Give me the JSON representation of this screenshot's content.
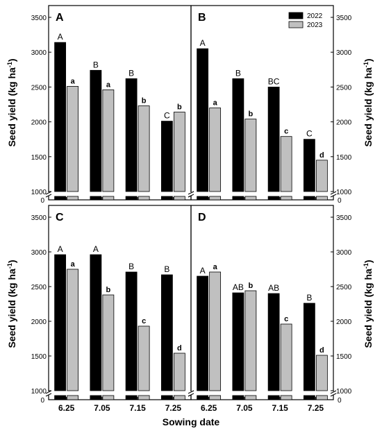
{
  "figure": {
    "xlabel": "Sowing date",
    "ylabel_main": "Seed yield (kg ha",
    "ylabel_sup": "-1",
    "ylabel_close": ")",
    "legend": [
      "2022",
      "2023"
    ],
    "colors": {
      "s2022": "#000000",
      "s2023": "#c0c0c0",
      "axis": "#000000",
      "break_bg": "#ffffff"
    }
  },
  "chart_data": [
    {
      "type": "bar",
      "panel": "A",
      "categories": [
        "6.25",
        "7.05",
        "7.15",
        "7.25"
      ],
      "ylim": [
        1000,
        3700
      ],
      "yticks": [
        "1000",
        "1500",
        "2000",
        "2500",
        "3000",
        "3500"
      ],
      "broken_axis_zero": "0",
      "series": [
        {
          "name": "2022",
          "values": [
            3140,
            2740,
            2620,
            2010
          ],
          "labels": [
            "A",
            "B",
            "B",
            "C"
          ]
        },
        {
          "name": "2023",
          "values": [
            2510,
            2460,
            2230,
            2140
          ],
          "labels": [
            "a",
            "a",
            "b",
            "b"
          ]
        }
      ],
      "legend_position": "none"
    },
    {
      "type": "bar",
      "panel": "B",
      "categories": [
        "6.25",
        "7.05",
        "7.15",
        "7.25"
      ],
      "ylim": [
        1000,
        3700
      ],
      "yticks": [
        "1000",
        "1500",
        "2000",
        "2500",
        "3000",
        "3500"
      ],
      "broken_axis_zero": "0",
      "series": [
        {
          "name": "2022",
          "values": [
            3050,
            2620,
            2500,
            1750
          ],
          "labels": [
            "A",
            "B",
            "BC",
            "C"
          ]
        },
        {
          "name": "2023",
          "values": [
            2200,
            2040,
            1790,
            1450
          ],
          "labels": [
            "a",
            "b",
            "c",
            "d"
          ]
        }
      ],
      "legend_position": "top-right"
    },
    {
      "type": "bar",
      "panel": "C",
      "categories": [
        "6.25",
        "7.05",
        "7.15",
        "7.25"
      ],
      "ylim": [
        1000,
        3700
      ],
      "yticks": [
        "1000",
        "1500",
        "2000",
        "2500",
        "3000",
        "3500"
      ],
      "broken_axis_zero": "0",
      "series": [
        {
          "name": "2022",
          "values": [
            2960,
            2960,
            2710,
            2670
          ],
          "labels": [
            "A",
            "A",
            "B",
            "B"
          ]
        },
        {
          "name": "2023",
          "values": [
            2750,
            2380,
            1930,
            1540
          ],
          "labels": [
            "a",
            "b",
            "c",
            "d"
          ]
        }
      ],
      "legend_position": "none"
    },
    {
      "type": "bar",
      "panel": "D",
      "categories": [
        "6.25",
        "7.05",
        "7.15",
        "7.25"
      ],
      "ylim": [
        1000,
        3700
      ],
      "yticks": [
        "1000",
        "1500",
        "2000",
        "2500",
        "3000",
        "3500"
      ],
      "broken_axis_zero": "0",
      "series": [
        {
          "name": "2022",
          "values": [
            2650,
            2410,
            2400,
            2260
          ],
          "labels": [
            "A",
            "AB",
            "AB",
            "B"
          ]
        },
        {
          "name": "2023",
          "values": [
            2710,
            2440,
            1960,
            1510
          ],
          "labels": [
            "a",
            "b",
            "c",
            "d"
          ]
        }
      ],
      "legend_position": "none"
    }
  ]
}
